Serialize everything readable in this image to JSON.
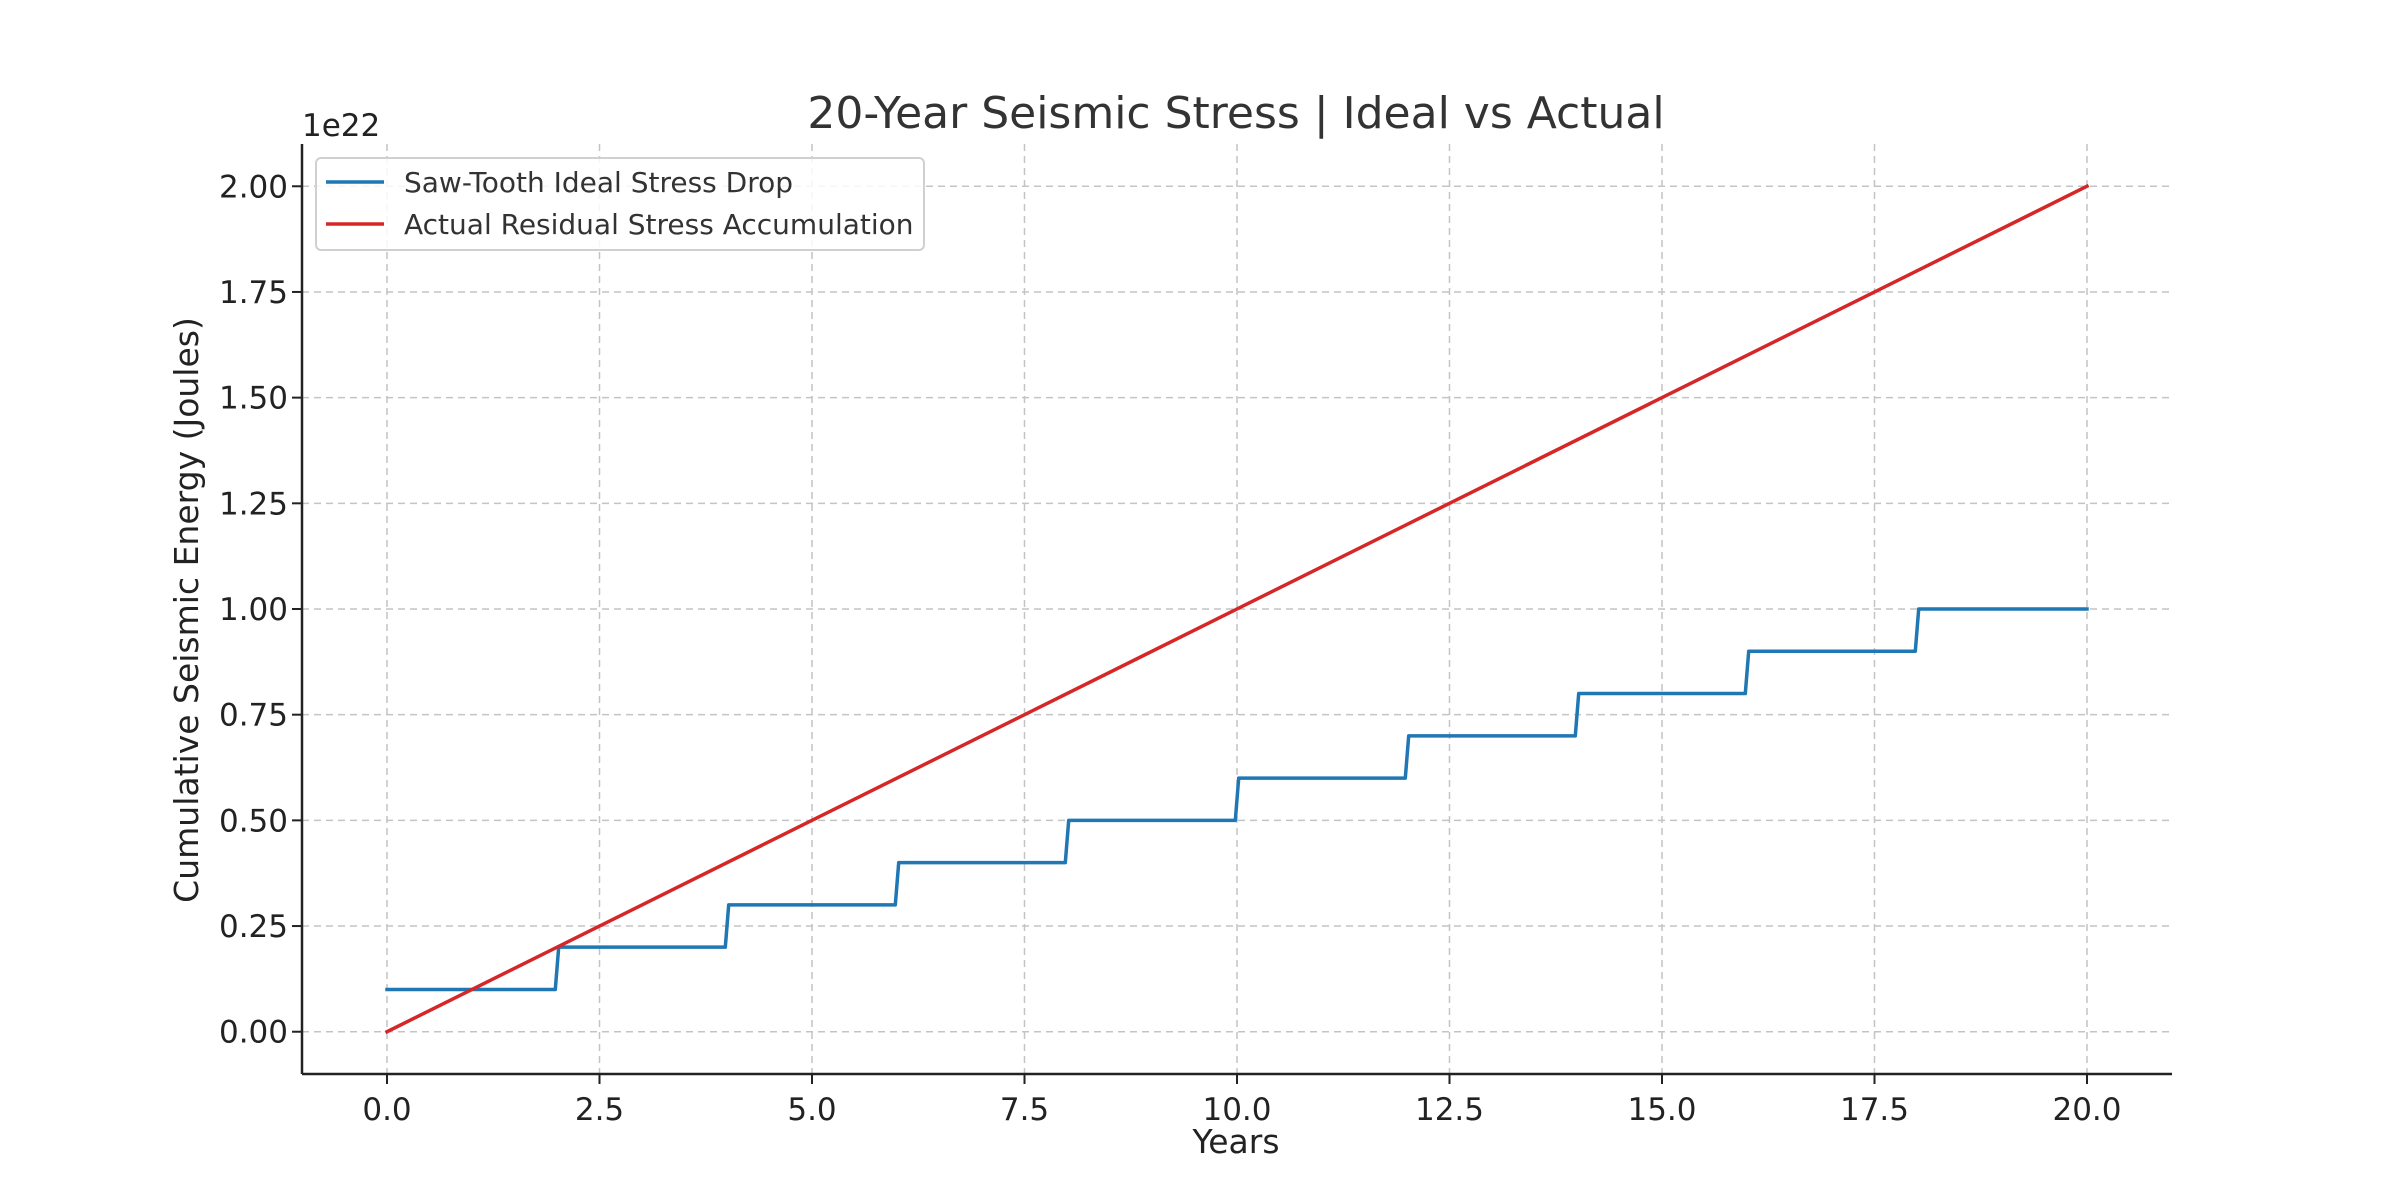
{
  "chart_data": {
    "type": "line",
    "title": "20-Year Seismic Stress | Ideal vs Actual",
    "xlabel": "Years",
    "ylabel": "Cumulative Seismic Energy (Joules)",
    "y_offset_label": "1e22",
    "y_scale_factor": 1e+22,
    "xlim": [
      -1,
      21
    ],
    "ylim": [
      -0.1,
      2.1
    ],
    "x_ticks": [
      0,
      2.5,
      5,
      7.5,
      10,
      12.5,
      15,
      17.5,
      20
    ],
    "x_tick_labels": [
      "0.0",
      "2.5",
      "5.0",
      "7.5",
      "10.0",
      "12.5",
      "15.0",
      "17.5",
      "20.0"
    ],
    "y_ticks": [
      0,
      0.25,
      0.5,
      0.75,
      1.0,
      1.25,
      1.5,
      1.75,
      2.0
    ],
    "y_tick_labels": [
      "0.00",
      "0.25",
      "0.50",
      "0.75",
      "1.00",
      "1.25",
      "1.50",
      "1.75",
      "2.00"
    ],
    "grid": true,
    "legend_position": "top-left",
    "series": [
      {
        "name": "Saw-Tooth Ideal Stress Drop",
        "color": "#1f77b4",
        "x": [
          0,
          1.98,
          2.02,
          3.98,
          4.02,
          5.98,
          6.02,
          7.98,
          8.02,
          9.98,
          10.02,
          11.98,
          12.02,
          13.98,
          14.02,
          15.98,
          16.02,
          17.98,
          18.02,
          20
        ],
        "y": [
          0.1,
          0.1,
          0.2,
          0.2,
          0.3,
          0.3,
          0.4,
          0.4,
          0.5,
          0.5,
          0.6,
          0.6,
          0.7,
          0.7,
          0.8,
          0.8,
          0.9,
          0.9,
          1.0,
          1.0
        ]
      },
      {
        "name": "Actual Residual Stress Accumulation",
        "color": "#d62728",
        "x": [
          0,
          20
        ],
        "y": [
          0,
          2.0
        ]
      }
    ]
  }
}
